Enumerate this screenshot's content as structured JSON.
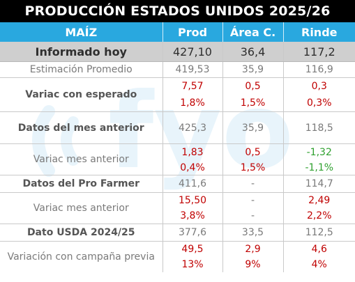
{
  "title": "PRODUCCIÓN ESTADOS UNIDOS 2025/26",
  "watermark": "fyo",
  "header": [
    "MAÍZ",
    "Prod",
    "Área C.",
    "Rinde"
  ],
  "rows": [
    {
      "label": "Informado hoy",
      "prod": "427,10",
      "area": "36,4",
      "rinde": "117,2"
    },
    {
      "label": "Estimación Promedio",
      "prod": "419,53",
      "area": "35,9",
      "rinde": "116,9"
    },
    {
      "label": "Variac con esperado",
      "prod": "7,57",
      "area": "0,5",
      "rinde": "0,3",
      "prod_pct": "1,8%",
      "area_pct": "1,5%",
      "rinde_pct": "0,3%"
    },
    {
      "label": "Datos del mes anterior",
      "prod": "425,3",
      "area": "35,9",
      "rinde": "118,5"
    },
    {
      "label": "Variac mes anterior",
      "prod": "1,83",
      "area": "0,5",
      "rinde": "-1,32",
      "prod_pct": "0,4%",
      "area_pct": "1,5%",
      "rinde_pct": "-1,1%"
    },
    {
      "label": "Datos del Pro Farmer",
      "prod": "411,6",
      "area": "-",
      "rinde": "114,7"
    },
    {
      "label": "Variac mes anterior",
      "prod": "15,50",
      "area": "-",
      "rinde": "2,49",
      "prod_pct": "3,8%",
      "area_pct": "-",
      "rinde_pct": "2,2%"
    },
    {
      "label": "Dato USDA 2024/25",
      "prod": "377,6",
      "area": "33,5",
      "rinde": "112,5"
    },
    {
      "label": "Variación con campaña previa",
      "prod": "49,5",
      "area": "2,9",
      "rinde": "4,6",
      "prod_pct": "13%",
      "area_pct": "9%",
      "rinde_pct": "4%"
    }
  ],
  "colors": {
    "header_bg": "#29a8df",
    "highlight_bg": "#cfcfcf",
    "positive": "#c00000",
    "negative": "#2ea02e",
    "watermark": "#e8f4fb"
  }
}
